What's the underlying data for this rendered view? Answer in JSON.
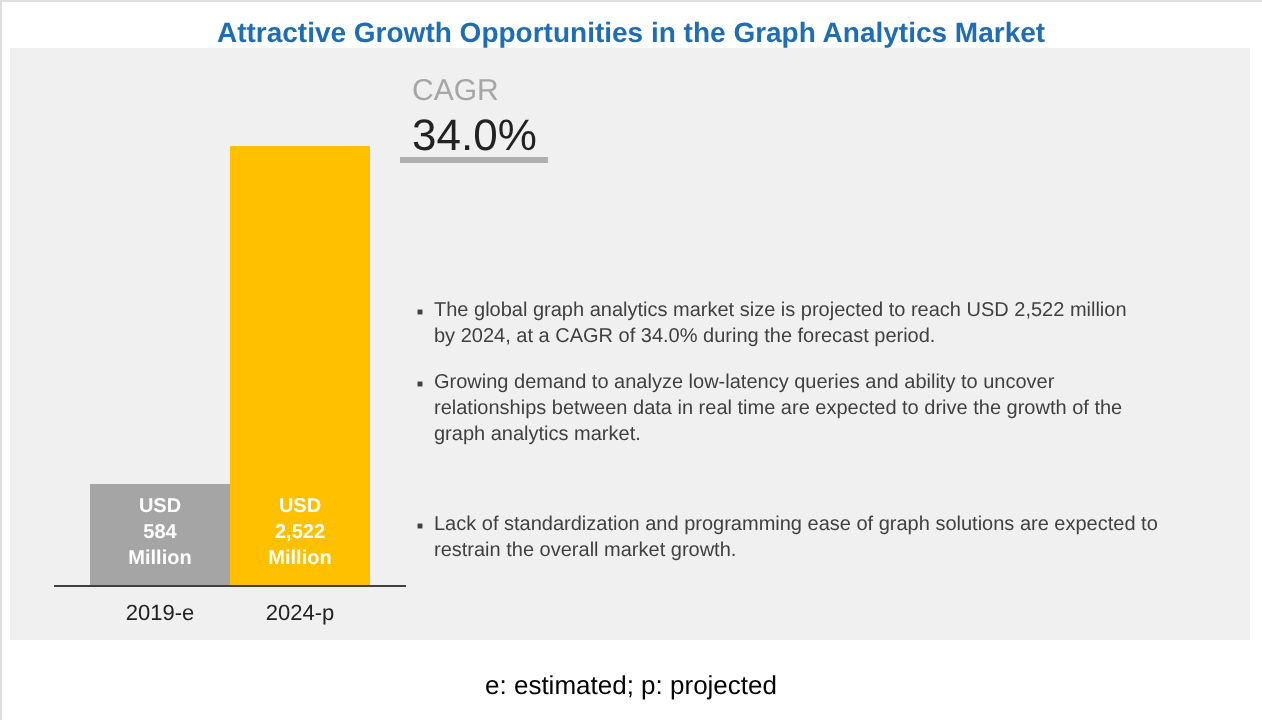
{
  "chart_data": {
    "type": "bar",
    "title": "Attractive Growth Opportunities in the Graph Analytics Market",
    "categories": [
      "2019-e",
      "2024-p"
    ],
    "values": [
      584,
      2522
    ],
    "colors": [
      "#a5a5a5",
      "#ffc000"
    ],
    "value_labels": [
      "USD 584 Million",
      "USD 2,522 Million"
    ],
    "annotations": [
      "CAGR",
      "34.0%",
      "The global graph analytics market size is projected to reach USD 2,522 million by 2024, at a CAGR of 34.0% during the forecast period.",
      "Growing demand to analyze low-latency queries and ability to uncover relationships between data in real time are expected to drive the growth of the graph analytics market.",
      "Lack of standardization and programming ease of graph solutions are expected to restrain the overall market growth.",
      "e: estimated; p: projected"
    ]
  }
}
